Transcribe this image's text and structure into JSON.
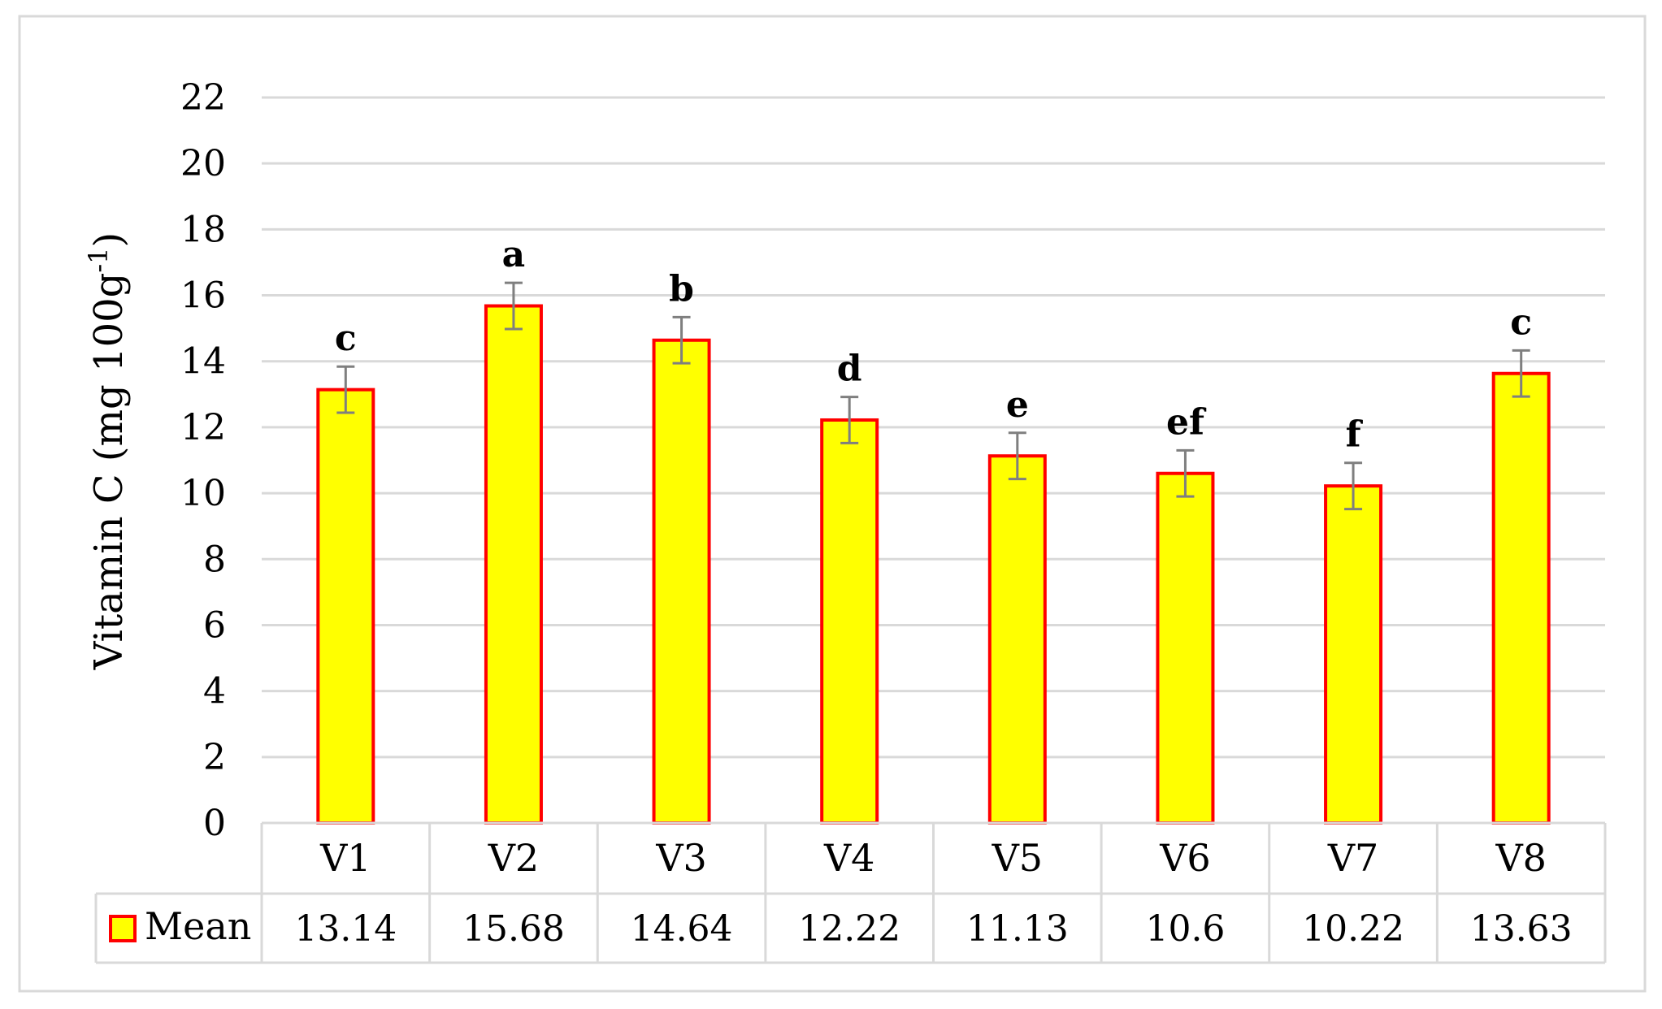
{
  "chart_data": {
    "type": "bar",
    "ylabel_main": "Vitamin C (mg 100g",
    "ylabel_sup": "-1",
    "ylabel_close": ")",
    "ylim": [
      0,
      22
    ],
    "yticks": [
      0,
      2,
      4,
      6,
      8,
      10,
      12,
      14,
      16,
      18,
      20,
      22
    ],
    "grid": true,
    "categories": [
      "V1",
      "V2",
      "V3",
      "V4",
      "V5",
      "V6",
      "V7",
      "V8"
    ],
    "series": [
      {
        "name": "Mean",
        "values": [
          13.14,
          15.68,
          14.64,
          12.22,
          11.13,
          10.6,
          10.22,
          13.63
        ],
        "value_labels": [
          "13.14",
          "15.68",
          "14.64",
          "12.22",
          "11.13",
          "10.6",
          "10.22",
          "13.63"
        ],
        "error": [
          0.7,
          0.7,
          0.7,
          0.7,
          0.7,
          0.7,
          0.7,
          0.7
        ],
        "fill": "#ffff00",
        "stroke": "#ff0000"
      }
    ],
    "significance_letters": [
      "c",
      "a",
      "b",
      "d",
      "e",
      "ef",
      "f",
      "c"
    ],
    "data_table": true
  }
}
